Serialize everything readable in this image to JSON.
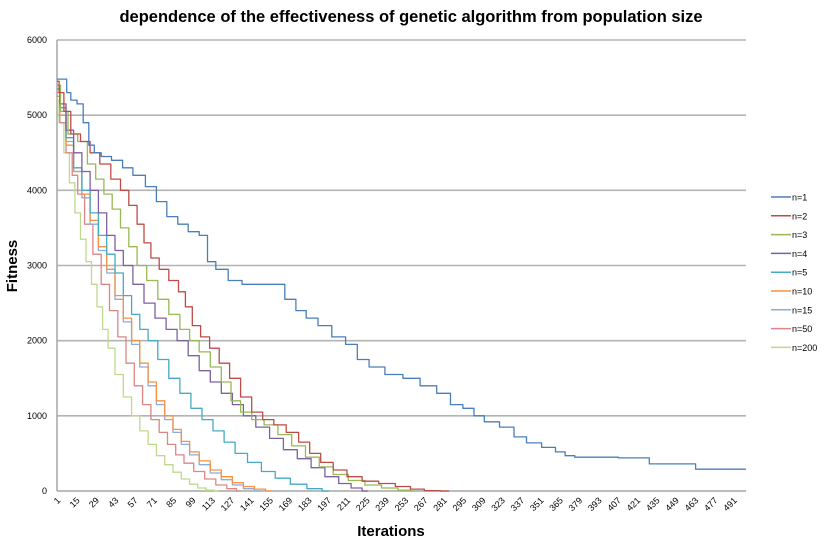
{
  "chart_data": {
    "type": "line",
    "title": "dependence of the effectiveness of genetic algorithm from population size",
    "xlabel": "Iterations",
    "ylabel": "Fitness",
    "xlim": [
      1,
      500
    ],
    "ylim": [
      0,
      6000
    ],
    "yticks": [
      0,
      1000,
      2000,
      3000,
      4000,
      5000,
      6000
    ],
    "ytick_labels": [
      "0",
      "1000",
      "2000",
      "3000",
      "4000",
      "5000",
      "6000"
    ],
    "xticks": [
      1,
      15,
      29,
      43,
      57,
      71,
      85,
      99,
      113,
      127,
      141,
      155,
      169,
      183,
      197,
      211,
      225,
      239,
      253,
      267,
      281,
      295,
      309,
      323,
      337,
      351,
      365,
      379,
      393,
      407,
      421,
      435,
      449,
      463,
      477,
      491
    ],
    "xtick_labels": [
      "1",
      "15",
      "29",
      "43",
      "57",
      "71",
      "85",
      "99",
      "113",
      "127",
      "141",
      "155",
      "169",
      "183",
      "197",
      "211",
      "225",
      "239",
      "253",
      "267",
      "281",
      "295",
      "309",
      "323",
      "337",
      "351",
      "365",
      "379",
      "393",
      "407",
      "421",
      "435",
      "449",
      "463",
      "477",
      "491"
    ],
    "grid": "horizontal",
    "legend_position": "right",
    "series": [
      {
        "name": "n=1",
        "color": "#4a7ebb",
        "points": [
          [
            1,
            5480
          ],
          [
            7,
            5480
          ],
          [
            9,
            5300
          ],
          [
            13,
            5200
          ],
          [
            18,
            5150
          ],
          [
            22,
            4900
          ],
          [
            26,
            4600
          ],
          [
            30,
            4500
          ],
          [
            36,
            4450
          ],
          [
            45,
            4400
          ],
          [
            52,
            4300
          ],
          [
            60,
            4200
          ],
          [
            70,
            4050
          ],
          [
            76,
            3850
          ],
          [
            85,
            3650
          ],
          [
            92,
            3550
          ],
          [
            100,
            3450
          ],
          [
            108,
            3400
          ],
          [
            112,
            3050
          ],
          [
            120,
            2950
          ],
          [
            130,
            2800
          ],
          [
            140,
            2750
          ],
          [
            162,
            2750
          ],
          [
            170,
            2550
          ],
          [
            178,
            2400
          ],
          [
            185,
            2300
          ],
          [
            195,
            2200
          ],
          [
            205,
            2050
          ],
          [
            215,
            1950
          ],
          [
            222,
            1750
          ],
          [
            232,
            1650
          ],
          [
            245,
            1550
          ],
          [
            258,
            1500
          ],
          [
            270,
            1400
          ],
          [
            282,
            1300
          ],
          [
            290,
            1150
          ],
          [
            300,
            1100
          ],
          [
            306,
            1000
          ],
          [
            315,
            920
          ],
          [
            328,
            850
          ],
          [
            336,
            720
          ],
          [
            346,
            640
          ],
          [
            358,
            580
          ],
          [
            366,
            520
          ],
          [
            372,
            470
          ],
          [
            380,
            450
          ],
          [
            405,
            450
          ],
          [
            410,
            440
          ],
          [
            428,
            440
          ],
          [
            432,
            360
          ],
          [
            462,
            360
          ],
          [
            465,
            290
          ],
          [
            500,
            290
          ]
        ]
      },
      {
        "name": "n=2",
        "color": "#be4b48",
        "points": [
          [
            1,
            5450
          ],
          [
            4,
            5300
          ],
          [
            8,
            5050
          ],
          [
            14,
            4750
          ],
          [
            22,
            4650
          ],
          [
            28,
            4500
          ],
          [
            36,
            4350
          ],
          [
            44,
            4150
          ],
          [
            50,
            4000
          ],
          [
            56,
            3800
          ],
          [
            62,
            3550
          ],
          [
            66,
            3300
          ],
          [
            72,
            3100
          ],
          [
            78,
            2950
          ],
          [
            86,
            2800
          ],
          [
            92,
            2650
          ],
          [
            96,
            2450
          ],
          [
            102,
            2200
          ],
          [
            108,
            2050
          ],
          [
            115,
            1900
          ],
          [
            122,
            1700
          ],
          [
            130,
            1500
          ],
          [
            138,
            1250
          ],
          [
            146,
            1050
          ],
          [
            154,
            950
          ],
          [
            162,
            880
          ],
          [
            172,
            780
          ],
          [
            180,
            650
          ],
          [
            188,
            500
          ],
          [
            196,
            380
          ],
          [
            206,
            280
          ],
          [
            216,
            190
          ],
          [
            228,
            130
          ],
          [
            240,
            100
          ],
          [
            252,
            60
          ],
          [
            262,
            25
          ],
          [
            272,
            5
          ],
          [
            285,
            0
          ]
        ]
      },
      {
        "name": "n=3",
        "color": "#98b954",
        "points": [
          [
            1,
            5400
          ],
          [
            6,
            5050
          ],
          [
            12,
            4750
          ],
          [
            20,
            4650
          ],
          [
            26,
            4350
          ],
          [
            32,
            4150
          ],
          [
            38,
            3950
          ],
          [
            44,
            3750
          ],
          [
            50,
            3500
          ],
          [
            56,
            3250
          ],
          [
            62,
            3000
          ],
          [
            70,
            2800
          ],
          [
            78,
            2550
          ],
          [
            86,
            2350
          ],
          [
            94,
            2150
          ],
          [
            100,
            2000
          ],
          [
            108,
            1850
          ],
          [
            116,
            1650
          ],
          [
            124,
            1450
          ],
          [
            130,
            1200
          ],
          [
            138,
            1050
          ],
          [
            146,
            950
          ],
          [
            156,
            880
          ],
          [
            166,
            750
          ],
          [
            176,
            600
          ],
          [
            186,
            450
          ],
          [
            196,
            320
          ],
          [
            206,
            220
          ],
          [
            218,
            140
          ],
          [
            230,
            80
          ],
          [
            242,
            40
          ],
          [
            254,
            10
          ],
          [
            260,
            0
          ]
        ]
      },
      {
        "name": "n=4",
        "color": "#7d60a0",
        "points": [
          [
            1,
            5400
          ],
          [
            5,
            5150
          ],
          [
            10,
            4800
          ],
          [
            16,
            4500
          ],
          [
            22,
            4250
          ],
          [
            28,
            4000
          ],
          [
            34,
            3700
          ],
          [
            40,
            3400
          ],
          [
            46,
            3200
          ],
          [
            52,
            3000
          ],
          [
            60,
            2750
          ],
          [
            68,
            2500
          ],
          [
            76,
            2300
          ],
          [
            84,
            2150
          ],
          [
            92,
            2000
          ],
          [
            100,
            1800
          ],
          [
            108,
            1600
          ],
          [
            116,
            1450
          ],
          [
            124,
            1300
          ],
          [
            132,
            1150
          ],
          [
            140,
            1000
          ],
          [
            150,
            850
          ],
          [
            160,
            700
          ],
          [
            170,
            550
          ],
          [
            180,
            430
          ],
          [
            190,
            310
          ],
          [
            200,
            190
          ],
          [
            210,
            100
          ],
          [
            218,
            40
          ],
          [
            226,
            0
          ]
        ]
      },
      {
        "name": "n=5",
        "color": "#46aac5",
        "points": [
          [
            1,
            5350
          ],
          [
            5,
            5100
          ],
          [
            10,
            4700
          ],
          [
            16,
            4300
          ],
          [
            22,
            4000
          ],
          [
            28,
            3700
          ],
          [
            34,
            3400
          ],
          [
            40,
            3150
          ],
          [
            46,
            2900
          ],
          [
            52,
            2600
          ],
          [
            58,
            2350
          ],
          [
            64,
            2150
          ],
          [
            70,
            2000
          ],
          [
            78,
            1750
          ],
          [
            86,
            1500
          ],
          [
            94,
            1300
          ],
          [
            102,
            1100
          ],
          [
            110,
            950
          ],
          [
            118,
            800
          ],
          [
            126,
            650
          ],
          [
            134,
            500
          ],
          [
            144,
            380
          ],
          [
            154,
            260
          ],
          [
            164,
            170
          ],
          [
            176,
            90
          ],
          [
            188,
            30
          ],
          [
            198,
            0
          ]
        ]
      },
      {
        "name": "n=10",
        "color": "#f69240",
        "points": [
          [
            1,
            5300
          ],
          [
            5,
            5000
          ],
          [
            10,
            4600
          ],
          [
            16,
            4250
          ],
          [
            22,
            3950
          ],
          [
            28,
            3600
          ],
          [
            34,
            3250
          ],
          [
            40,
            2950
          ],
          [
            46,
            2600
          ],
          [
            52,
            2300
          ],
          [
            58,
            2000
          ],
          [
            64,
            1700
          ],
          [
            70,
            1450
          ],
          [
            76,
            1200
          ],
          [
            82,
            1000
          ],
          [
            88,
            820
          ],
          [
            94,
            660
          ],
          [
            100,
            520
          ],
          [
            108,
            400
          ],
          [
            116,
            280
          ],
          [
            124,
            190
          ],
          [
            132,
            110
          ],
          [
            140,
            60
          ],
          [
            148,
            25
          ],
          [
            156,
            0
          ]
        ]
      },
      {
        "name": "n=15",
        "color": "#8faadc",
        "points": [
          [
            1,
            5350
          ],
          [
            5,
            5050
          ],
          [
            10,
            4650
          ],
          [
            16,
            4250
          ],
          [
            22,
            3900
          ],
          [
            28,
            3550
          ],
          [
            34,
            3200
          ],
          [
            40,
            2900
          ],
          [
            46,
            2550
          ],
          [
            52,
            2250
          ],
          [
            58,
            1950
          ],
          [
            64,
            1650
          ],
          [
            70,
            1400
          ],
          [
            76,
            1150
          ],
          [
            82,
            950
          ],
          [
            88,
            780
          ],
          [
            94,
            620
          ],
          [
            100,
            480
          ],
          [
            108,
            350
          ],
          [
            116,
            240
          ],
          [
            124,
            150
          ],
          [
            132,
            80
          ],
          [
            140,
            30
          ],
          [
            148,
            0
          ]
        ]
      },
      {
        "name": "n=50",
        "color": "#dc8686",
        "points": [
          [
            1,
            5250
          ],
          [
            5,
            4900
          ],
          [
            10,
            4500
          ],
          [
            14,
            4200
          ],
          [
            18,
            3950
          ],
          [
            24,
            3550
          ],
          [
            30,
            3150
          ],
          [
            36,
            2750
          ],
          [
            42,
            2400
          ],
          [
            48,
            2050
          ],
          [
            54,
            1700
          ],
          [
            60,
            1400
          ],
          [
            66,
            1150
          ],
          [
            72,
            950
          ],
          [
            78,
            780
          ],
          [
            84,
            620
          ],
          [
            90,
            480
          ],
          [
            96,
            370
          ],
          [
            104,
            260
          ],
          [
            112,
            160
          ],
          [
            120,
            80
          ],
          [
            128,
            30
          ],
          [
            134,
            0
          ]
        ]
      },
      {
        "name": "n=200",
        "color": "#bfd88e",
        "points": [
          [
            1,
            5200
          ],
          [
            4,
            4900
          ],
          [
            8,
            4500
          ],
          [
            12,
            4100
          ],
          [
            16,
            3700
          ],
          [
            20,
            3350
          ],
          [
            24,
            3050
          ],
          [
            28,
            2750
          ],
          [
            32,
            2450
          ],
          [
            36,
            2150
          ],
          [
            40,
            1900
          ],
          [
            46,
            1550
          ],
          [
            52,
            1250
          ],
          [
            58,
            1000
          ],
          [
            64,
            800
          ],
          [
            70,
            620
          ],
          [
            76,
            470
          ],
          [
            82,
            350
          ],
          [
            88,
            250
          ],
          [
            94,
            160
          ],
          [
            100,
            90
          ],
          [
            106,
            40
          ],
          [
            112,
            10
          ],
          [
            118,
            0
          ]
        ]
      }
    ]
  }
}
